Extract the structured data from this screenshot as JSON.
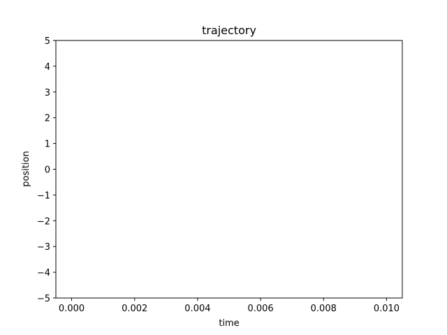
{
  "chart_data": {
    "type": "line",
    "title": "trajectory",
    "xlabel": "time",
    "ylabel": "position",
    "xlim": [
      -0.0005,
      0.0105
    ],
    "ylim": [
      -5,
      5
    ],
    "xticks": [
      0,
      0.002,
      0.004,
      0.006,
      0.008,
      0.01
    ],
    "xtick_labels": [
      "0.000",
      "0.002",
      "0.004",
      "0.006",
      "0.008",
      "0.010"
    ],
    "yticks": [
      -5,
      -4,
      -3,
      -2,
      -1,
      0,
      1,
      2,
      3,
      4,
      5
    ],
    "ytick_labels": [
      "−5",
      "−4",
      "−3",
      "−2",
      "−1",
      "0",
      "1",
      "2",
      "3",
      "4",
      "5"
    ],
    "series": [
      {
        "x": [],
        "y": []
      }
    ],
    "grid": false,
    "colors": {
      "axes": "#000000",
      "background": "#ffffff"
    }
  }
}
